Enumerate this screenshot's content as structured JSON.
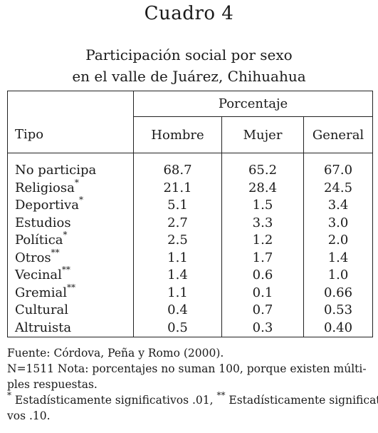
{
  "title": "Cuadro 4",
  "subtitle_line1": "Participación social por sexo",
  "subtitle_line2": "en el valle de Juárez, Chihuahua",
  "table": {
    "header_group": "Porcentaje",
    "col_tipo": "Tipo",
    "col_hombre": "Hombre",
    "col_mujer": "Mujer",
    "col_general": "General",
    "rows": [
      {
        "tipo": "No participa",
        "mark": "",
        "hombre": "68.7",
        "mujer": "65.2",
        "general": "67.0"
      },
      {
        "tipo": "Religiosa",
        "mark": "*",
        "hombre": "21.1",
        "mujer": "28.4",
        "general": "24.5"
      },
      {
        "tipo": "Deportiva",
        "mark": "*",
        "hombre": "5.1",
        "mujer": "1.5",
        "general": "3.4"
      },
      {
        "tipo": "Estudios",
        "mark": "",
        "hombre": "2.7",
        "mujer": "3.3",
        "general": "3.0"
      },
      {
        "tipo": "Política",
        "mark": "*",
        "hombre": "2.5",
        "mujer": "1.2",
        "general": "2.0"
      },
      {
        "tipo": "Otros",
        "mark": "**",
        "hombre": "1.1",
        "mujer": "1.7",
        "general": "1.4"
      },
      {
        "tipo": "Vecinal",
        "mark": "**",
        "hombre": "1.4",
        "mujer": "0.6",
        "general": "1.0"
      },
      {
        "tipo": "Gremial",
        "mark": "**",
        "hombre": "1.1",
        "mujer": "0.1",
        "general": "0.66"
      },
      {
        "tipo": "Cultural",
        "mark": "",
        "hombre": "0.4",
        "mujer": "0.7",
        "general": "0.53"
      },
      {
        "tipo": "Altruista",
        "mark": "",
        "hombre": "0.5",
        "mujer": "0.3",
        "general": "0.40"
      }
    ]
  },
  "notes": {
    "source": "Fuente: Córdova, Peña y Romo (2000).",
    "n_note_line1": "N=1511  Nota: porcentajes no suman 100, porque existen múlti-",
    "n_note_line2": "ples respuestas.",
    "sig_mark1": "*",
    "sig_text1": " Estadísticamente significativos .01, ",
    "sig_mark2": "**",
    "sig_text2": " Estadísticamente significati-",
    "sig_line2": "vos .10."
  }
}
